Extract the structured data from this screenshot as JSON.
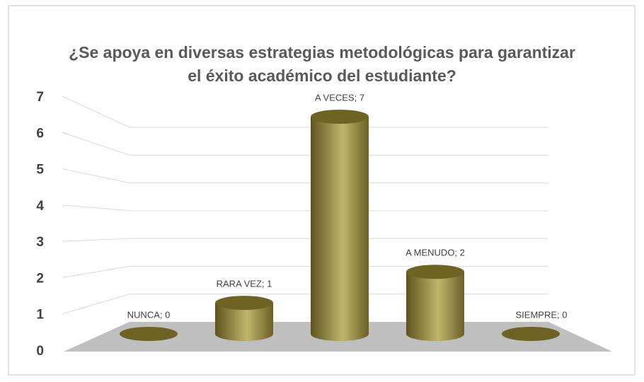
{
  "chart_data": {
    "type": "bar3d",
    "title": "¿Se apoya en diversas estrategias metodológicas para garantizar el éxito académico del estudiante?",
    "values": [
      0,
      1,
      7,
      2,
      0
    ],
    "value_labels": [
      "NUNCA; 0",
      "RARA VEZ; 1",
      "A VECES; 7",
      "A MENUDO; 2",
      "SIEMPRE; 0"
    ],
    "color": "#8c7f3a",
    "ylim": [
      0,
      7
    ],
    "yticks": [
      0,
      1,
      2,
      3,
      4,
      5,
      6,
      7
    ],
    "grid": true
  }
}
